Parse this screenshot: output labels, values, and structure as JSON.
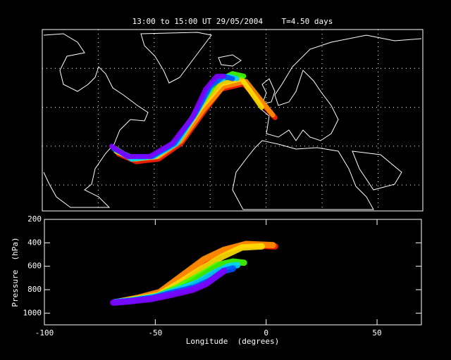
{
  "chart_data": [
    {
      "type": "map",
      "title": "13:00 to 15:00 UT 29/05/2004    T=4.50 days",
      "xlim": [
        -100,
        70
      ],
      "ylim": [
        10,
        80
      ],
      "xgrid": [
        -75,
        -50,
        -25,
        0,
        25,
        50
      ],
      "ygrid": [
        20,
        35,
        50,
        65
      ],
      "grid": true,
      "series": [
        {
          "color": "#ff2000",
          "x": [
            -66,
            -58,
            -48,
            -38,
            -28,
            -20,
            -10,
            4
          ],
          "values": [
            32,
            29,
            30,
            36,
            48,
            57,
            59,
            46
          ]
        },
        {
          "color": "#ff9000",
          "x": [
            -66,
            -58,
            -48,
            -38,
            -28,
            -19,
            -9,
            3
          ],
          "values": [
            33,
            30,
            31,
            37,
            49,
            58,
            60,
            47
          ]
        },
        {
          "color": "#ffe000",
          "x": [
            -67,
            -59,
            -49,
            -39,
            -29,
            -20,
            -11,
            -2
          ],
          "values": [
            33,
            30,
            31,
            37,
            50,
            59,
            61,
            50
          ]
        },
        {
          "color": "#40ff00",
          "x": [
            -67,
            -60,
            -50,
            -40,
            -30,
            -22,
            -15,
            -10
          ],
          "values": [
            34,
            30,
            31,
            37,
            50,
            60,
            63,
            62
          ]
        },
        {
          "color": "#00d0ff",
          "x": [
            -68,
            -60,
            -50,
            -40,
            -31,
            -24,
            -17,
            -13
          ],
          "values": [
            34,
            30,
            31,
            36,
            48,
            59,
            62,
            61
          ]
        },
        {
          "color": "#0050ff",
          "x": [
            -68,
            -61,
            -51,
            -41,
            -32,
            -25,
            -19,
            -15
          ],
          "values": [
            34,
            31,
            31,
            36,
            47,
            58,
            62,
            61
          ]
        },
        {
          "color": "#8000ff",
          "x": [
            -69,
            -62,
            -52,
            -42,
            -33,
            -27,
            -22,
            -19
          ],
          "values": [
            35,
            31,
            31,
            36,
            46,
            57,
            62,
            62
          ]
        }
      ]
    },
    {
      "type": "line",
      "xlabel": "Longitude  (degrees)",
      "ylabel": "Pressure  (hPa)",
      "xlim": [
        -100,
        70
      ],
      "xticks": [
        -100,
        -50,
        0,
        50
      ],
      "ylim": [
        1100,
        200
      ],
      "yticks": [
        200,
        400,
        600,
        800,
        1000
      ],
      "series": [
        {
          "color": "#ff2000",
          "x": [
            -66,
            -58,
            -48,
            -38,
            -28,
            -20,
            -10,
            4
          ],
          "values": [
            900,
            880,
            830,
            690,
            550,
            470,
            420,
            430
          ]
        },
        {
          "color": "#ff9000",
          "x": [
            -66,
            -58,
            -48,
            -38,
            -28,
            -19,
            -9,
            3
          ],
          "values": [
            900,
            870,
            820,
            680,
            540,
            460,
            410,
            420
          ]
        },
        {
          "color": "#ffe000",
          "x": [
            -67,
            -59,
            -49,
            -39,
            -29,
            -20,
            -11,
            -2
          ],
          "values": [
            905,
            880,
            850,
            740,
            620,
            520,
            440,
            430
          ]
        },
        {
          "color": "#40ff00",
          "x": [
            -67,
            -60,
            -50,
            -40,
            -30,
            -22,
            -15,
            -10
          ],
          "values": [
            905,
            890,
            860,
            780,
            680,
            590,
            560,
            570
          ]
        },
        {
          "color": "#00d0ff",
          "x": [
            -68,
            -60,
            -50,
            -40,
            -31,
            -24,
            -17,
            -13
          ],
          "values": [
            905,
            890,
            860,
            800,
            740,
            660,
            600,
            590
          ]
        },
        {
          "color": "#0050ff",
          "x": [
            -68,
            -61,
            -51,
            -41,
            -32,
            -25,
            -19,
            -15
          ],
          "values": [
            910,
            895,
            870,
            820,
            780,
            720,
            640,
            620
          ]
        },
        {
          "color": "#8000ff",
          "x": [
            -69,
            -62,
            -52,
            -42,
            -33,
            -27,
            -22,
            -19
          ],
          "values": [
            910,
            900,
            880,
            840,
            800,
            750,
            680,
            640
          ]
        }
      ]
    }
  ]
}
